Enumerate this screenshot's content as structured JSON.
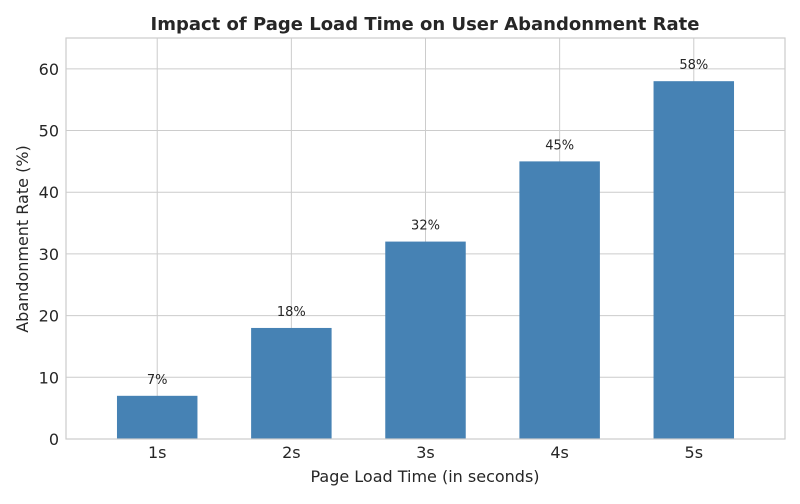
{
  "chart_data": {
    "type": "bar",
    "title": "Impact of Page Load Time on User Abandonment Rate",
    "xlabel": "Page Load Time (in seconds)",
    "ylabel": "Abandonment Rate (%)",
    "categories": [
      "1s",
      "2s",
      "3s",
      "4s",
      "5s"
    ],
    "values": [
      7,
      18,
      32,
      45,
      58
    ],
    "data_labels": [
      "7%",
      "18%",
      "32%",
      "45%",
      "58%"
    ],
    "ylim": [
      0,
      65
    ],
    "yticks": [
      0,
      10,
      20,
      30,
      40,
      50,
      60
    ],
    "grid": true,
    "bar_color": "#4682b4"
  }
}
